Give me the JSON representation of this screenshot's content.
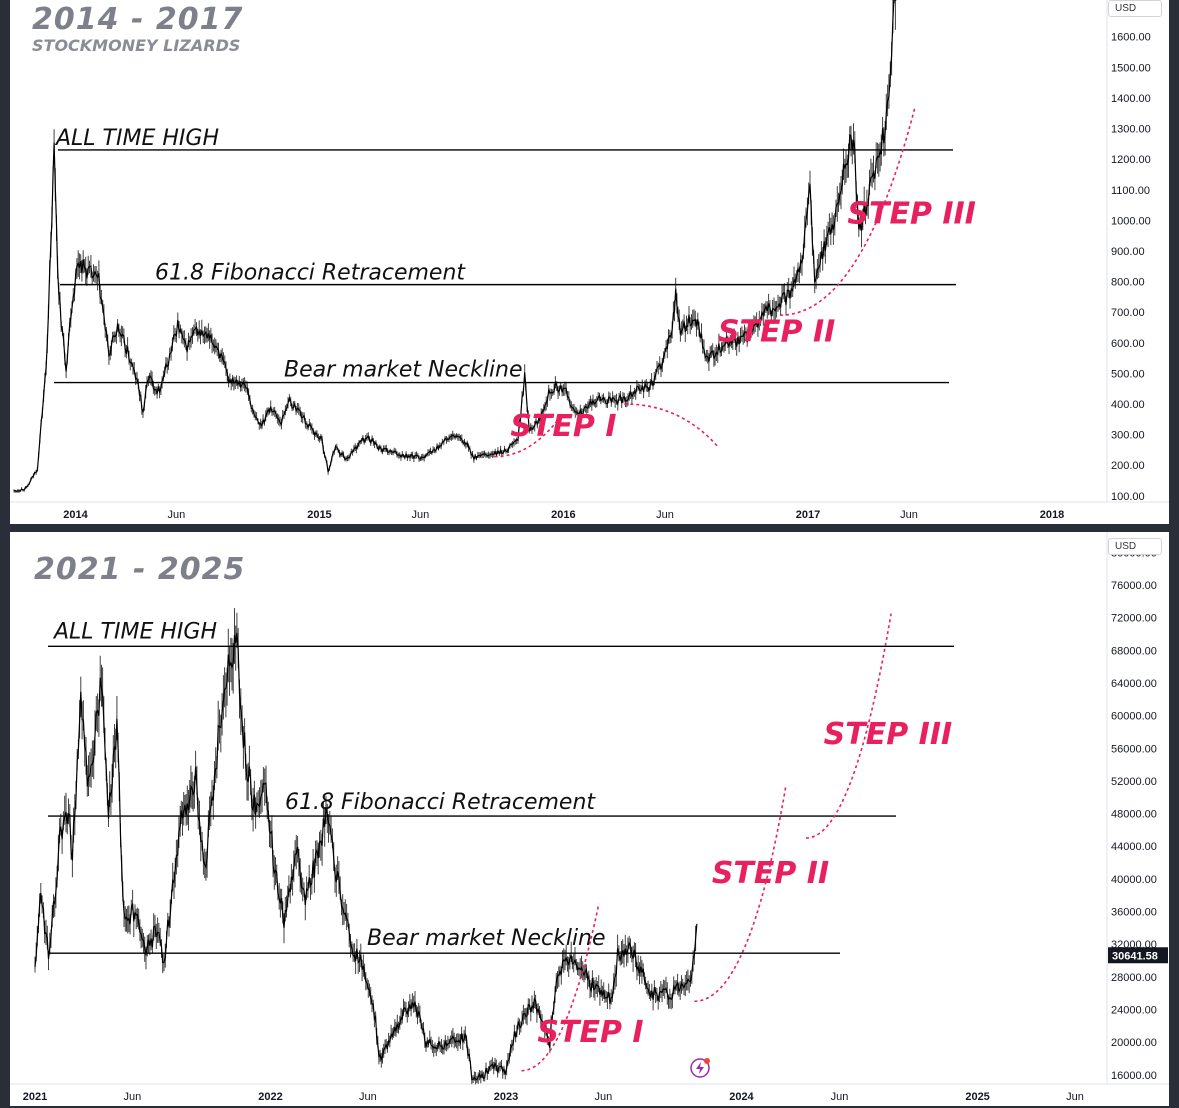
{
  "chart_data": [
    {
      "type": "line",
      "title": "2014 - 2017",
      "subtitle": "STOCKMONEY LIZARDS",
      "unit": "USD",
      "x_ticks": [
        "2014",
        "Jun",
        "2015",
        "Jun",
        "2016",
        "Jun",
        "2017",
        "Jun",
        "2018"
      ],
      "y_ticks": [
        "100.00",
        "200.00",
        "300.00",
        "400.00",
        "500.00",
        "600.00",
        "700.00",
        "800.00",
        "900.00",
        "1000.00",
        "1100.00",
        "1200.00",
        "1300.00",
        "1400.00",
        "1500.00",
        "1600.00"
      ],
      "ylim": [
        70,
        1720
      ],
      "levels": [
        {
          "label": "ALL TIME HIGH",
          "value": 1230
        },
        {
          "label": "61.8 Fibonacci Retracement",
          "value": 790
        },
        {
          "label": "Bear market Neckline",
          "value": 470
        }
      ],
      "steps": [
        "STEP I",
        "STEP II",
        "STEP III"
      ],
      "series": [
        {
          "values": [
            [
              "2013-10-01",
              115
            ],
            [
              "2013-10-20",
              125
            ],
            [
              "2013-11-05",
              190
            ],
            [
              "2013-11-18",
              520
            ],
            [
              "2013-11-25",
              900
            ],
            [
              "2013-11-30",
              1240
            ],
            [
              "2013-12-07",
              750
            ],
            [
              "2013-12-18",
              520
            ],
            [
              "2013-12-25",
              700
            ],
            [
              "2014-01-05",
              870
            ],
            [
              "2014-01-20",
              830
            ],
            [
              "2014-02-05",
              800
            ],
            [
              "2014-02-20",
              560
            ],
            [
              "2014-03-05",
              650
            ],
            [
              "2014-03-20",
              570
            ],
            [
              "2014-04-05",
              460
            ],
            [
              "2014-04-12",
              370
            ],
            [
              "2014-04-20",
              490
            ],
            [
              "2014-05-05",
              440
            ],
            [
              "2014-05-20",
              540
            ],
            [
              "2014-06-03",
              660
            ],
            [
              "2014-06-15",
              580
            ],
            [
              "2014-07-01",
              640
            ],
            [
              "2014-07-15",
              620
            ],
            [
              "2014-08-01",
              590
            ],
            [
              "2014-08-18",
              480
            ],
            [
              "2014-09-01",
              480
            ],
            [
              "2014-09-15",
              450
            ],
            [
              "2014-09-25",
              360
            ],
            [
              "2014-10-05",
              330
            ],
            [
              "2014-10-20",
              390
            ],
            [
              "2014-11-05",
              340
            ],
            [
              "2014-11-15",
              410
            ],
            [
              "2014-12-01",
              380
            ],
            [
              "2014-12-15",
              330
            ],
            [
              "2015-01-05",
              280
            ],
            [
              "2015-01-14",
              180
            ],
            [
              "2015-01-25",
              260
            ],
            [
              "2015-02-10",
              220
            ],
            [
              "2015-03-05",
              280
            ],
            [
              "2015-03-15",
              290
            ],
            [
              "2015-04-05",
              250
            ],
            [
              "2015-05-01",
              235
            ],
            [
              "2015-06-01",
              225
            ],
            [
              "2015-06-20",
              245
            ],
            [
              "2015-07-10",
              285
            ],
            [
              "2015-07-25",
              295
            ],
            [
              "2015-08-10",
              265
            ],
            [
              "2015-08-20",
              225
            ],
            [
              "2015-09-15",
              235
            ],
            [
              "2015-10-05",
              245
            ],
            [
              "2015-10-25",
              285
            ],
            [
              "2015-11-04",
              490
            ],
            [
              "2015-11-11",
              320
            ],
            [
              "2015-11-25",
              345
            ],
            [
              "2015-12-10",
              440
            ],
            [
              "2015-12-20",
              455
            ],
            [
              "2016-01-05",
              440
            ],
            [
              "2016-01-15",
              380
            ],
            [
              "2016-02-01",
              375
            ],
            [
              "2016-02-20",
              420
            ],
            [
              "2016-03-05",
              410
            ],
            [
              "2016-04-01",
              415
            ],
            [
              "2016-04-20",
              450
            ],
            [
              "2016-05-10",
              455
            ],
            [
              "2016-05-28",
              540
            ],
            [
              "2016-06-10",
              620
            ],
            [
              "2016-06-17",
              760
            ],
            [
              "2016-06-24",
              630
            ],
            [
              "2016-07-05",
              670
            ],
            [
              "2016-07-20",
              660
            ],
            [
              "2016-08-02",
              540
            ],
            [
              "2016-08-15",
              570
            ],
            [
              "2016-09-01",
              600
            ],
            [
              "2016-09-20",
              605
            ],
            [
              "2016-10-10",
              630
            ],
            [
              "2016-10-28",
              700
            ],
            [
              "2016-11-15",
              720
            ],
            [
              "2016-12-05",
              760
            ],
            [
              "2016-12-25",
              900
            ],
            [
              "2017-01-04",
              1120
            ],
            [
              "2017-01-11",
              780
            ],
            [
              "2017-01-25",
              920
            ],
            [
              "2017-02-10",
              1000
            ],
            [
              "2017-02-25",
              1180
            ],
            [
              "2017-03-10",
              1280
            ],
            [
              "2017-03-18",
              960
            ],
            [
              "2017-03-30",
              1050
            ],
            [
              "2017-04-15",
              1200
            ],
            [
              "2017-04-30",
              1350
            ],
            [
              "2017-05-10",
              1700
            ],
            [
              "2017-05-15",
              1780
            ]
          ]
        }
      ]
    },
    {
      "type": "line",
      "title": "2021 - 2025",
      "unit": "USD",
      "last_price": "30641.58",
      "x_ticks": [
        "2021",
        "Jun",
        "2022",
        "Jun",
        "2023",
        "Jun",
        "2024",
        "Jun",
        "2025",
        "Jun"
      ],
      "y_ticks": [
        "16000.00",
        "20000.00",
        "24000.00",
        "28000.00",
        "32000.00",
        "36000.00",
        "40000.00",
        "44000.00",
        "48000.00",
        "52000.00",
        "56000.00",
        "60000.00",
        "64000.00",
        "68000.00",
        "72000.00",
        "76000.00",
        "80000.00"
      ],
      "ylim": [
        14500,
        82500
      ],
      "levels": [
        {
          "label": "ALL TIME HIGH",
          "value": 68500
        },
        {
          "label": "61.8 Fibonacci Retracement",
          "value": 47700
        },
        {
          "label": "Bear market Neckline",
          "value": 30900
        }
      ],
      "steps": [
        "STEP I",
        "STEP II",
        "STEP III"
      ],
      "series": [
        {
          "values": [
            [
              "2021-01-01",
              29000
            ],
            [
              "2021-01-10",
              38000
            ],
            [
              "2021-01-22",
              30500
            ],
            [
              "2021-02-10",
              46000
            ],
            [
              "2021-02-22",
              48000
            ],
            [
              "2021-02-28",
              43000
            ],
            [
              "2021-03-13",
              61000
            ],
            [
              "2021-03-25",
              51000
            ],
            [
              "2021-04-14",
              64500
            ],
            [
              "2021-04-25",
              48000
            ],
            [
              "2021-05-08",
              58000
            ],
            [
              "2021-05-19",
              35000
            ],
            [
              "2021-06-05",
              36000
            ],
            [
              "2021-06-22",
              31000
            ],
            [
              "2021-07-10",
              34000
            ],
            [
              "2021-07-20",
              30000
            ],
            [
              "2021-08-14",
              47000
            ],
            [
              "2021-08-25",
              48000
            ],
            [
              "2021-09-07",
              52000
            ],
            [
              "2021-09-21",
              41000
            ],
            [
              "2021-10-10",
              55000
            ],
            [
              "2021-10-20",
              64000
            ],
            [
              "2021-11-10",
              68800
            ],
            [
              "2021-11-20",
              57000
            ],
            [
              "2021-12-05",
              49000
            ],
            [
              "2021-12-25",
              51000
            ],
            [
              "2022-01-05",
              43000
            ],
            [
              "2022-01-22",
              35000
            ],
            [
              "2022-02-10",
              44000
            ],
            [
              "2022-02-24",
              37000
            ],
            [
              "2022-03-28",
              47500
            ],
            [
              "2022-04-15",
              40000
            ],
            [
              "2022-05-09",
              31000
            ],
            [
              "2022-05-25",
              29500
            ],
            [
              "2022-06-13",
              22500
            ],
            [
              "2022-06-18",
              18000
            ],
            [
              "2022-07-05",
              20000
            ],
            [
              "2022-07-30",
              24000
            ],
            [
              "2022-08-15",
              24500
            ],
            [
              "2022-08-30",
              20000
            ],
            [
              "2022-09-15",
              19500
            ],
            [
              "2022-10-05",
              20000
            ],
            [
              "2022-10-30",
              20800
            ],
            [
              "2022-11-09",
              16000
            ],
            [
              "2022-11-21",
              15800
            ],
            [
              "2022-12-15",
              17000
            ],
            [
              "2022-12-31",
              16500
            ],
            [
              "2023-01-14",
              20800
            ],
            [
              "2023-01-30",
              23500
            ],
            [
              "2023-02-16",
              24800
            ],
            [
              "2023-03-10",
              20000
            ],
            [
              "2023-03-20",
              28000
            ],
            [
              "2023-04-14",
              30500
            ],
            [
              "2023-04-30",
              29000
            ],
            [
              "2023-05-15",
              27000
            ],
            [
              "2023-06-15",
              25000
            ],
            [
              "2023-06-23",
              30500
            ],
            [
              "2023-07-13",
              31500
            ],
            [
              "2023-07-25",
              29200
            ],
            [
              "2023-08-17",
              26000
            ],
            [
              "2023-09-10",
              25800
            ],
            [
              "2023-09-28",
              27000
            ],
            [
              "2023-10-16",
              28500
            ],
            [
              "2023-10-24",
              34500
            ]
          ]
        }
      ]
    }
  ]
}
